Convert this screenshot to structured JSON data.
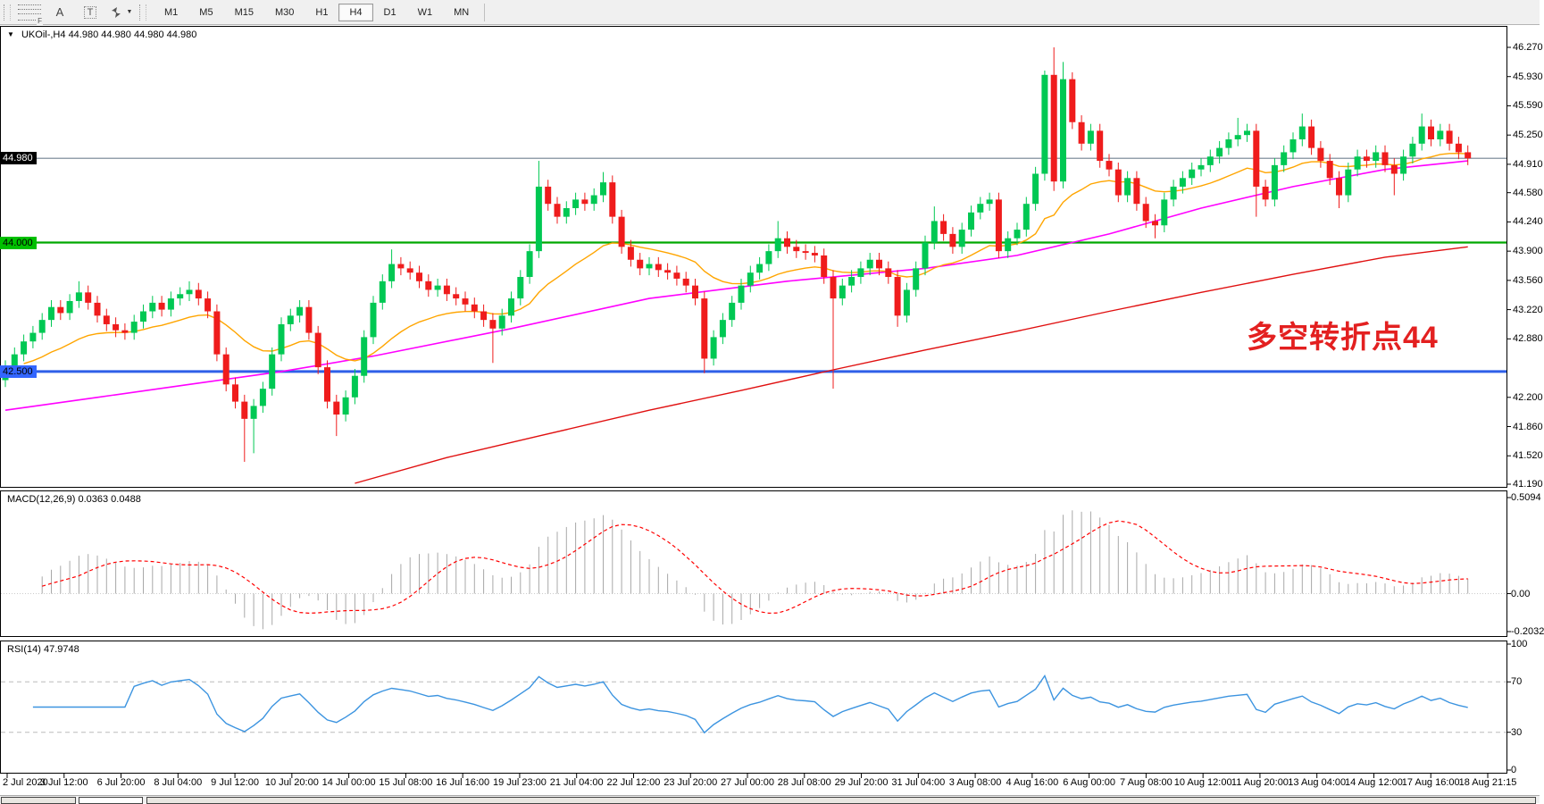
{
  "toolbar": {
    "tools": [
      {
        "id": "fibonacci-tool",
        "glyph": "F"
      },
      {
        "id": "text-tool",
        "glyph": "A"
      },
      {
        "id": "text-label-tool",
        "glyph": "T"
      },
      {
        "id": "arrows-tool",
        "glyph": ""
      }
    ],
    "timeframes": [
      "M1",
      "M5",
      "M15",
      "M30",
      "H1",
      "H4",
      "D1",
      "W1",
      "MN"
    ],
    "active_timeframe": "H4"
  },
  "chart": {
    "title": "UKOil-,H4",
    "quotes": "44.980 44.980 44.980 44.980",
    "annotation": {
      "text": "多空转折点44",
      "color": "#e32020"
    },
    "price_axis": {
      "ticks": [
        "46.270",
        "45.930",
        "45.590",
        "45.250",
        "44.910",
        "44.580",
        "44.240",
        "43.900",
        "43.560",
        "43.220",
        "42.880",
        "42.200",
        "41.860",
        "41.520",
        "41.190"
      ]
    },
    "tags": [
      {
        "text": "44.980",
        "price": 44.98,
        "bg": "#000000",
        "fg": "#ffffff"
      },
      {
        "text": "44.000",
        "price": 44.0,
        "bg": "#00c000",
        "fg": "#000000"
      },
      {
        "text": "42.500",
        "price": 42.5,
        "bg": "#3366ff",
        "fg": "#000000"
      }
    ]
  },
  "macd_panel": {
    "label": "MACD(12,26,9) 0.0363 0.0488",
    "axis": [
      "0.5094",
      "0.00",
      "-0.2032"
    ]
  },
  "rsi_panel": {
    "label": "RSI(14) 47.9748",
    "axis": [
      "100",
      "70",
      "30",
      "0"
    ],
    "levels": [
      70,
      30
    ]
  },
  "x_axis": {
    "labels": [
      "2 Jul 2020",
      "3 Jul 12:00",
      "6 Jul 20:00",
      "8 Jul 04:00",
      "9 Jul 12:00",
      "10 Jul 20:00",
      "14 Jul 00:00",
      "15 Jul 08:00",
      "16 Jul 16:00",
      "19 Jul 23:00",
      "21 Jul 04:00",
      "22 Jul 12:00",
      "23 Jul 20:00",
      "27 Jul 00:00",
      "28 Jul 08:00",
      "29 Jul 20:00",
      "31 Jul 04:00",
      "3 Aug 08:00",
      "4 Aug 16:00",
      "6 Aug 00:00",
      "7 Aug 08:00",
      "10 Aug 12:00",
      "11 Aug 20:00",
      "13 Aug 04:00",
      "14 Aug 12:00",
      "17 Aug 16:00",
      "18 Aug 21:15"
    ]
  },
  "chart_data": {
    "type": "candlestick",
    "symbol": "UKOil-",
    "timeframe": "H4",
    "price_range": {
      "top": 46.27,
      "bottom": 41.19
    },
    "open_first": 42.4,
    "closes": [
      42.55,
      42.7,
      42.85,
      42.95,
      43.1,
      43.25,
      43.18,
      43.32,
      43.42,
      43.3,
      43.15,
      43.05,
      42.98,
      42.95,
      43.08,
      43.2,
      43.3,
      43.22,
      43.35,
      43.4,
      43.45,
      43.35,
      43.2,
      42.7,
      42.35,
      42.15,
      41.95,
      42.1,
      42.3,
      42.7,
      43.05,
      43.15,
      43.25,
      42.95,
      42.55,
      42.15,
      42.0,
      42.2,
      42.45,
      42.9,
      43.3,
      43.55,
      43.75,
      43.7,
      43.65,
      43.55,
      43.45,
      43.5,
      43.4,
      43.35,
      43.28,
      43.2,
      43.1,
      43.0,
      43.15,
      43.35,
      43.6,
      43.9,
      44.65,
      44.45,
      44.3,
      44.4,
      44.5,
      44.45,
      44.55,
      44.7,
      44.3,
      43.95,
      43.8,
      43.7,
      43.75,
      43.68,
      43.65,
      43.58,
      43.5,
      43.35,
      42.65,
      42.9,
      43.1,
      43.3,
      43.5,
      43.65,
      43.75,
      43.9,
      44.05,
      43.95,
      43.9,
      43.88,
      43.85,
      43.6,
      43.35,
      43.5,
      43.6,
      43.7,
      43.8,
      43.7,
      43.6,
      43.15,
      43.45,
      43.7,
      44.0,
      44.25,
      44.1,
      43.95,
      44.15,
      44.35,
      44.45,
      44.5,
      43.9,
      44.05,
      44.15,
      44.45,
      44.8,
      45.95,
      44.71,
      45.9,
      45.4,
      45.15,
      45.3,
      44.95,
      44.85,
      44.55,
      44.75,
      44.45,
      44.25,
      44.2,
      44.5,
      44.65,
      44.75,
      44.85,
      44.9,
      45.0,
      45.1,
      45.2,
      45.25,
      45.3,
      44.65,
      44.5,
      44.9,
      45.05,
      45.2,
      45.35,
      45.1,
      44.95,
      44.75,
      44.55,
      44.85,
      45.0,
      44.95,
      45.05,
      44.9,
      44.8,
      45.0,
      45.15,
      45.35,
      45.2,
      45.3,
      45.15,
      45.05,
      44.98
    ],
    "wick": {
      "default": 0.08,
      "high_overrides": {
        "8": 43.55,
        "20": 43.55,
        "42": 43.92,
        "58": 44.95,
        "65": 44.82,
        "84": 44.25,
        "101": 44.42,
        "113": 46.0,
        "114": 46.27,
        "115": 46.1,
        "134": 45.45,
        "141": 45.5,
        "154": 45.5
      },
      "low_overrides": {
        "26": 41.45,
        "27": 41.55,
        "36": 41.75,
        "53": 42.6,
        "76": 42.48,
        "90": 42.3,
        "97": 43.02,
        "114": 44.6,
        "125": 44.05,
        "136": 44.3,
        "145": 44.4,
        "151": 44.55
      }
    },
    "hlines": [
      {
        "price": 44.98,
        "color": "#708090",
        "width": 1.2,
        "name": "current-price-line"
      },
      {
        "price": 44.0,
        "color": "#00a800",
        "width": 2.2,
        "name": "green-level-line"
      },
      {
        "price": 42.5,
        "color": "#2e5fe8",
        "width": 3,
        "name": "blue-level-line"
      }
    ],
    "overlays": {
      "ema_fast": {
        "period": 20,
        "color": "#ffa500"
      },
      "ma_mid": {
        "color": "#ff00ff",
        "anchors": [
          [
            0,
            42.05
          ],
          [
            10,
            42.2
          ],
          [
            20,
            42.35
          ],
          [
            30,
            42.5
          ],
          [
            40,
            42.68
          ],
          [
            55,
            43.0
          ],
          [
            70,
            43.35
          ],
          [
            85,
            43.55
          ],
          [
            100,
            43.7
          ],
          [
            110,
            43.85
          ],
          [
            120,
            44.1
          ],
          [
            130,
            44.4
          ],
          [
            140,
            44.65
          ],
          [
            150,
            44.85
          ],
          [
            159,
            44.95
          ]
        ]
      },
      "ma_slow": {
        "color": "#e01010",
        "anchors": [
          [
            38,
            41.2
          ],
          [
            48,
            41.5
          ],
          [
            58,
            41.75
          ],
          [
            70,
            42.05
          ],
          [
            80,
            42.28
          ],
          [
            90,
            42.52
          ],
          [
            100,
            42.75
          ],
          [
            110,
            42.97
          ],
          [
            120,
            43.2
          ],
          [
            130,
            43.42
          ],
          [
            140,
            43.63
          ],
          [
            150,
            43.83
          ],
          [
            159,
            43.95
          ]
        ]
      }
    },
    "indicators": {
      "macd": {
        "fast": 12,
        "slow": 26,
        "signal": 9,
        "current_main": 0.0363,
        "current_signal": 0.0488,
        "scale_max": 0.5094,
        "scale_min": -0.2032
      },
      "rsi": {
        "period": 14,
        "current": 47.9748,
        "scale": [
          0,
          100
        ],
        "levels": [
          70,
          30
        ]
      }
    }
  },
  "colors": {
    "up": "#00c853",
    "down": "#ef1c1c",
    "macd_hist": "#a8a8a8",
    "macd_signal": "#ff0000",
    "rsi": "#3c94e0",
    "rsi_levels": "#bbbbbb",
    "axis_text": "#000000"
  }
}
